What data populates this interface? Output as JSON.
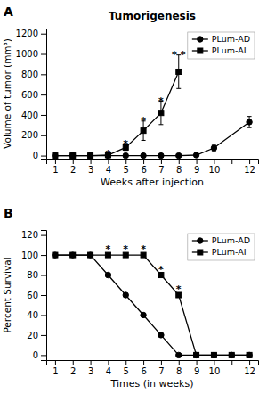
{
  "chart_data": [
    {
      "type": "line",
      "title": "Tumorigenesis",
      "panel_label": "A",
      "x_label": "Weeks after injection",
      "y_label": "Volume of tumor (mm³)",
      "xlim": [
        0.5,
        12.5
      ],
      "ylim": [
        -30,
        1250
      ],
      "xticks": [
        1,
        2,
        3,
        4,
        5,
        6,
        7,
        8,
        9,
        10,
        {
          "value": 11,
          "label": null
        },
        12
      ],
      "yticks": [
        0,
        200,
        400,
        600,
        800,
        1000,
        1200
      ],
      "grid": false,
      "legend": "upper right",
      "series": [
        {
          "name": "PLum-AD",
          "color": "#000000",
          "marker": "circle",
          "x": [
            1,
            2,
            3,
            4,
            5,
            6,
            7,
            8,
            9,
            10,
            12
          ],
          "values": [
            0,
            0,
            0,
            0,
            0,
            0,
            0,
            0,
            5,
            75,
            330
          ],
          "errors": [
            null,
            null,
            null,
            null,
            null,
            null,
            null,
            null,
            3,
            28,
            55
          ]
        },
        {
          "name": "PLum-AI",
          "color": "#000000",
          "marker": "square",
          "x": [
            1,
            2,
            3,
            4,
            5,
            6,
            7,
            8
          ],
          "values": [
            0,
            0,
            0,
            5,
            80,
            245,
            420,
            825
          ],
          "errors": [
            null,
            null,
            null,
            5,
            28,
            95,
            115,
            165
          ]
        }
      ],
      "annotations": [
        {
          "x": 4,
          "y": 10,
          "text": "*"
        },
        {
          "x": 5,
          "y": 108,
          "text": "*"
        },
        {
          "x": 6,
          "y": 340,
          "text": "*"
        },
        {
          "x": 7,
          "y": 535,
          "text": "*"
        },
        {
          "x": 8,
          "y": 990,
          "text": "* *"
        }
      ]
    },
    {
      "type": "line",
      "panel_label": "B",
      "x_label": "Times (in weeks)",
      "y_label": "Percent Survival",
      "xlim": [
        0.5,
        12.5
      ],
      "ylim": [
        -5,
        125
      ],
      "xticks": [
        1,
        2,
        3,
        4,
        5,
        6,
        7,
        8,
        9,
        10,
        {
          "value": 11,
          "label": null
        },
        12
      ],
      "yticks": [
        0,
        20,
        40,
        60,
        80,
        100,
        120
      ],
      "grid": false,
      "legend": "upper right",
      "series": [
        {
          "name": "PLum-AD",
          "color": "#000000",
          "marker": "circle",
          "x": [
            1,
            2,
            3,
            4,
            5,
            6,
            7,
            8,
            9,
            10,
            11,
            12
          ],
          "values": [
            100,
            100,
            100,
            80,
            60,
            40,
            20,
            0,
            0,
            0,
            0,
            0
          ]
        },
        {
          "name": "PLum-AI",
          "color": "#000000",
          "marker": "square",
          "x": [
            1,
            2,
            3,
            4,
            5,
            6,
            7,
            8,
            9,
            10,
            11,
            12
          ],
          "values": [
            100,
            100,
            100,
            100,
            100,
            100,
            80,
            60,
            0,
            0,
            0,
            0
          ]
        }
      ],
      "annotations": [
        {
          "x": 4,
          "y": 105,
          "text": "*"
        },
        {
          "x": 5,
          "y": 105,
          "text": "*"
        },
        {
          "x": 6,
          "y": 105,
          "text": "*"
        },
        {
          "x": 7,
          "y": 85,
          "text": "*"
        },
        {
          "x": 8,
          "y": 65,
          "text": "*"
        }
      ]
    }
  ]
}
